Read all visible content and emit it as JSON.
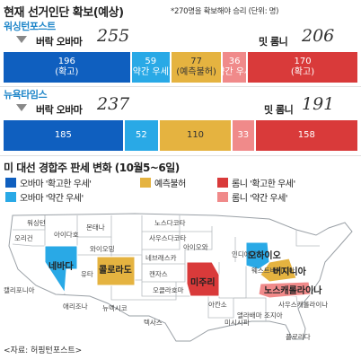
{
  "header": {
    "title": "현재 선거인단 확보(예상)",
    "note": "*270명을 확보해야 승리 (단위: 명)"
  },
  "colors": {
    "obama_strong": "#0f5fbf",
    "obama_lean": "#29a9e6",
    "tossup": "#e5b340",
    "romney_lean": "#f08a8a",
    "romney_strong": "#d93a3a"
  },
  "chart_data": [
    {
      "type": "bar",
      "orientation": "horizontal-stacked",
      "title": "워싱턴포스트",
      "obama_label": "버락 오바마",
      "obama_total": "255",
      "romney_label": "밋 롬니",
      "romney_total": "206",
      "series": [
        {
          "name": "확고",
          "value": 196
        },
        {
          "name": "약간 우세",
          "value": 59
        },
        {
          "name": "예측불허",
          "value": 77
        },
        {
          "name": "약간 우세",
          "value": 36
        },
        {
          "name": "확고",
          "value": 170
        }
      ],
      "xlim": [
        0,
        538
      ]
    },
    {
      "type": "bar",
      "orientation": "horizontal-stacked",
      "title": "뉴욕타임스",
      "obama_label": "버락 오바마",
      "obama_total": "237",
      "romney_label": "밋 롬니",
      "romney_total": "191",
      "series": [
        {
          "value": 185
        },
        {
          "value": 52
        },
        {
          "value": 110
        },
        {
          "value": 33
        },
        {
          "value": 158
        }
      ],
      "xlim": [
        0,
        538
      ]
    }
  ],
  "map": {
    "title": "미 대선 경합주 판세 변화 (10월5~6일)",
    "legend": [
      {
        "label": "오바마 '확고한 우세'",
        "color_key": "obama_strong"
      },
      {
        "label": "오바마 '약간 우세'",
        "color_key": "obama_lean"
      },
      {
        "label": "예측불허",
        "color_key": "tossup"
      },
      {
        "label": "롬니 '확고한 우세'",
        "color_key": "romney_strong"
      },
      {
        "label": "롬니 '약간 우세'",
        "color_key": "romney_lean"
      }
    ],
    "states": {
      "washington": "워싱턴",
      "oregon": "오리건",
      "idaho": "아이다호",
      "montana": "몬태나",
      "california": "캘리포니아",
      "nevada": "네바다",
      "utah": "유타",
      "arizona": "애리조나",
      "wyoming": "와이오밍",
      "colorado": "콜로라도",
      "new_mexico": "뉴멕시코",
      "north_dakota": "노스다코타",
      "south_dakota": "사우스다코타",
      "nebraska": "네브래스카",
      "kansas": "캔자스",
      "oklahoma": "오클라호마",
      "texas": "텍사스",
      "iowa": "아이오와",
      "missouri": "미주리",
      "arkansas": "아칸소",
      "indiana": "인디애나",
      "ohio": "오하이오",
      "west_virginia": "웨스트버지니아",
      "virginia": "버지니아",
      "north_carolina": "노스캐롤라이나",
      "south_carolina": "사우스캐롤라이나",
      "mississippi": "미시시피",
      "alabama": "앨라배마",
      "georgia": "조지아",
      "florida": "플로리다"
    }
  },
  "credit": "<자료: 허핑턴포스트>"
}
